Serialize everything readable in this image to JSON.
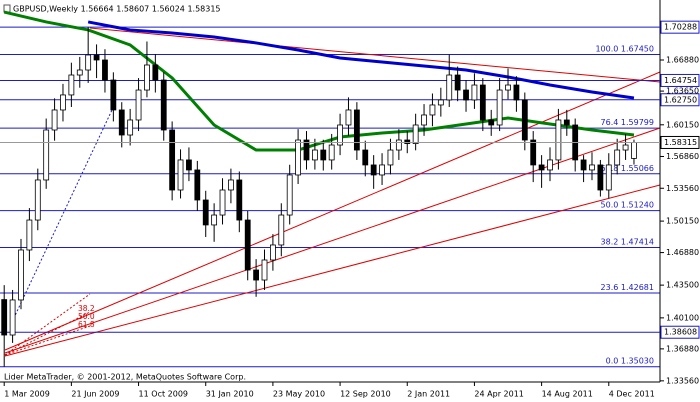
{
  "chart_data": {
    "type": "candlestick",
    "title": "GBPUSD,Weekly  1.56664 1.58607 1.56024 1.58315",
    "footer": "Lider MetaTrader, © 2001-2012, MetaQuotes Software Corp.",
    "xlim": [
      -0.5,
      78.1
    ],
    "xticks": [
      {
        "value": 0,
        "label": "1 Mar 2009"
      },
      {
        "value": 8,
        "label": "21 Jun 2009"
      },
      {
        "value": 16,
        "label": "11 Oct 2009"
      },
      {
        "value": 24,
        "label": "31 Jan 2010"
      },
      {
        "value": 32,
        "label": "23 May 2010"
      },
      {
        "value": 40,
        "label": "12 Sep 2010"
      },
      {
        "value": 48,
        "label": "2 Jan 2011"
      },
      {
        "value": 56,
        "label": "24 Apr 2011"
      },
      {
        "value": 64,
        "label": "14 Aug 2011"
      },
      {
        "value": 72,
        "label": "4 Dec 2011"
      }
    ],
    "ylim": [
      1.3344,
      1.7311
    ],
    "yticks": [
      {
        "value": 1.6688,
        "label": "1.66880"
      },
      {
        "value": 1.6365,
        "label": "1.63650"
      },
      {
        "value": 1.6015,
        "label": "1.60150"
      },
      {
        "value": 1.5686,
        "label": "1.56860"
      },
      {
        "value": 1.5356,
        "label": "1.53560"
      },
      {
        "value": 1.5015,
        "label": "1.50150"
      },
      {
        "value": 1.4688,
        "label": "1.46880"
      },
      {
        "value": 1.435,
        "label": "1.43500"
      },
      {
        "value": 1.401,
        "label": "1.40100"
      },
      {
        "value": 1.3688,
        "label": "1.36880"
      },
      {
        "value": 1.3356,
        "label": "1.33560"
      }
    ],
    "open": [
      1.42,
      1.3832,
      1.4196,
      1.4715,
      1.5026,
      1.5442,
      1.5961,
      1.6169,
      1.6325,
      1.6532,
      1.6584,
      1.674,
      1.6688,
      1.648,
      1.6169,
      1.5909,
      1.6065,
      1.6376,
      1.6636,
      1.648,
      1.5961,
      1.5338,
      1.565,
      1.5546,
      1.5234,
      1.4975,
      1.5078,
      1.5338,
      1.5442,
      1.5026,
      1.4507,
      1.4403,
      1.4611,
      1.4767,
      1.5078,
      1.5494,
      1.5857,
      1.565,
      1.5753,
      1.565,
      1.5805,
      1.6013,
      1.6169,
      1.5753,
      1.5598,
      1.5494,
      1.5598,
      1.5753,
      1.5857,
      1.582,
      1.6013,
      1.6117,
      1.6221,
      1.6273,
      1.6532,
      1.6376,
      1.6273,
      1.6428,
      1.6065,
      1.6013,
      1.6376,
      1.6428,
      1.6273,
      1.5857,
      1.5598,
      1.5546,
      1.565,
      1.6065,
      1.6013,
      1.565,
      1.5546,
      1.5598,
      1.5338,
      1.5598,
      1.5753,
      1.5666
    ],
    "high": [
      1.435,
      1.43,
      1.483,
      1.515,
      1.556,
      1.608,
      1.629,
      1.644,
      1.666,
      1.672,
      1.7029,
      1.685,
      1.68,
      1.656,
      1.625,
      1.618,
      1.65,
      1.688,
      1.675,
      1.656,
      1.605,
      1.576,
      1.578,
      1.564,
      1.533,
      1.52,
      1.546,
      1.556,
      1.553,
      1.512,
      1.462,
      1.472,
      1.488,
      1.52,
      1.56,
      1.597,
      1.595,
      1.587,
      1.586,
      1.592,
      1.613,
      1.63,
      1.625,
      1.585,
      1.57,
      1.572,
      1.587,
      1.597,
      1.595,
      1.613,
      1.623,
      1.634,
      1.64,
      1.6745,
      1.662,
      1.648,
      1.655,
      1.65,
      1.617,
      1.65,
      1.66,
      1.652,
      1.635,
      1.595,
      1.57,
      1.578,
      1.618,
      1.617,
      1.608,
      1.57,
      1.573,
      1.565,
      1.572,
      1.587,
      1.592,
      1.5861
    ],
    "low": [
      1.3503,
      1.375,
      1.41,
      1.46,
      1.492,
      1.535,
      1.585,
      1.605,
      1.62,
      1.64,
      1.645,
      1.65,
      1.635,
      1.605,
      1.578,
      1.58,
      1.595,
      1.63,
      1.635,
      1.585,
      1.523,
      1.525,
      1.543,
      1.512,
      1.485,
      1.48,
      1.498,
      1.52,
      1.49,
      1.44,
      1.4229,
      1.43,
      1.45,
      1.465,
      1.498,
      1.54,
      1.555,
      1.555,
      1.554,
      1.555,
      1.57,
      1.59,
      1.565,
      1.548,
      1.535,
      1.539,
      1.55,
      1.565,
      1.572,
      1.575,
      1.59,
      1.6,
      1.61,
      1.62,
      1.626,
      1.615,
      1.618,
      1.595,
      1.59,
      1.595,
      1.628,
      1.615,
      1.575,
      1.542,
      1.536,
      1.543,
      1.555,
      1.59,
      1.553,
      1.542,
      1.544,
      1.527,
      1.525,
      1.55,
      1.565,
      1.5602
    ],
    "close": [
      1.3832,
      1.4196,
      1.4715,
      1.5026,
      1.5442,
      1.5961,
      1.6169,
      1.6325,
      1.6532,
      1.6584,
      1.674,
      1.6688,
      1.648,
      1.6169,
      1.5909,
      1.6065,
      1.6376,
      1.6636,
      1.648,
      1.5961,
      1.5338,
      1.565,
      1.5546,
      1.5234,
      1.4975,
      1.5078,
      1.5338,
      1.5442,
      1.5026,
      1.4507,
      1.4403,
      1.4611,
      1.4767,
      1.5078,
      1.5494,
      1.5857,
      1.565,
      1.5753,
      1.565,
      1.5805,
      1.6013,
      1.6169,
      1.5753,
      1.5598,
      1.5494,
      1.5598,
      1.5753,
      1.5857,
      1.582,
      1.6013,
      1.6117,
      1.6221,
      1.6273,
      1.6532,
      1.6376,
      1.6273,
      1.6428,
      1.6065,
      1.6013,
      1.6376,
      1.6428,
      1.6273,
      1.5857,
      1.5598,
      1.5546,
      1.565,
      1.6065,
      1.6013,
      1.565,
      1.5546,
      1.5598,
      1.5338,
      1.5598,
      1.5753,
      1.5805,
      1.58315
    ],
    "moving_averages": [
      {
        "color": "#008000",
        "x": [
          0,
          5,
          10,
          15,
          20,
          25,
          30,
          35,
          40,
          45,
          50,
          55,
          60,
          65,
          70,
          75
        ],
        "values": [
          1.7186,
          1.7083,
          1.7,
          1.6844,
          1.6501,
          1.6013,
          1.5753,
          1.5753,
          1.5888,
          1.593,
          1.5961,
          1.6023,
          1.6086,
          1.6023,
          1.5961,
          1.5909
        ]
      },
      {
        "color": "#0000cd",
        "x": [
          10,
          15,
          20,
          25,
          30,
          35,
          40,
          45,
          50,
          55,
          60,
          65,
          70,
          75
        ],
        "values": [
          1.7083,
          1.7,
          1.6968,
          1.6927,
          1.6865,
          1.6792,
          1.6709,
          1.6667,
          1.6626,
          1.6584,
          1.6511,
          1.6428,
          1.6356,
          1.6293
        ]
      }
    ],
    "fibonacci": {
      "color": "#1c1cc8",
      "levels": [
        {
          "ratio": "100.0",
          "price": {
            "value": 1.6745,
            "label": "1.67450"
          }
        },
        {
          "ratio": "76.4",
          "price": 1.59799
        },
        {
          "ratio": "61.8",
          "price": 1.55066
        },
        {
          "ratio": "50.0",
          "price": {
            "value": 1.5124,
            "label": "1.51240"
          }
        },
        {
          "ratio": "38.2",
          "price": 1.47414
        },
        {
          "ratio": "23.6",
          "price": 1.42681
        },
        {
          "ratio": "0.0",
          "price": {
            "value": 1.3503,
            "label": "1.35030"
          }
        }
      ]
    },
    "price_levels": [
      1.70288,
      1.64754,
      {
        "value": 1.6275,
        "label": "1.62750"
      },
      1.38608
    ],
    "current_price": 1.58315,
    "fan_labels": [
      "38.2",
      "50.0",
      "61.8"
    ]
  }
}
